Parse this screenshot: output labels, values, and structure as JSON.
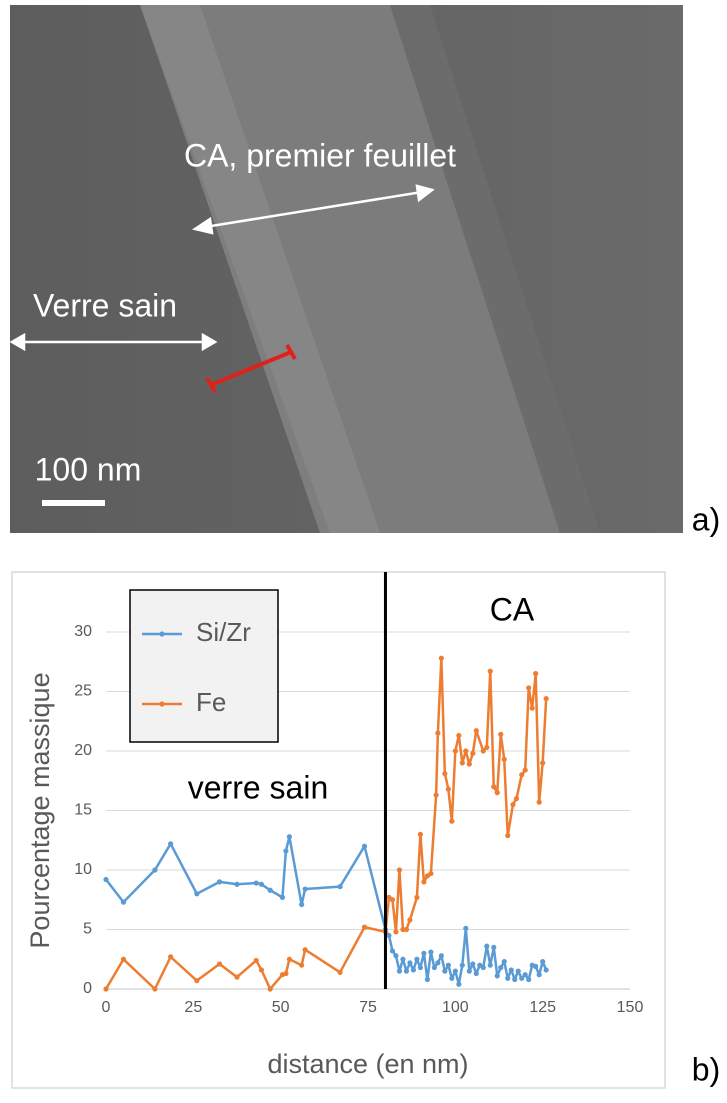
{
  "image": {
    "labels": [
      "CA, premier feuillet",
      "Verre sain",
      "100 nm"
    ]
  },
  "panel_labels": [
    "a)",
    "b)"
  ],
  "chart_data": {
    "type": "line",
    "xlabel": "distance (en nm)",
    "ylabel": "Pourcentage massique",
    "annotations": [
      "verre sain",
      "CA"
    ],
    "vertical_line": 80,
    "xlim": [
      0,
      150
    ],
    "xticks": [
      0,
      25,
      50,
      75,
      100,
      125,
      150
    ],
    "ylim": [
      0,
      30
    ],
    "yticks": [
      0,
      5,
      10,
      15,
      20,
      25,
      30
    ],
    "grid": true,
    "legend": "upper left",
    "series": [
      {
        "name": "Si/Zr",
        "color": "#5b9bd5",
        "x": [
          0,
          5,
          14,
          18.5,
          26,
          32.5,
          37.5,
          43,
          44.5,
          47,
          50.5,
          51.5,
          52.5,
          56,
          57,
          67,
          74,
          80,
          81,
          82,
          83,
          84,
          85,
          86,
          87,
          88,
          89,
          90,
          91,
          92,
          93,
          94,
          95,
          96,
          97,
          98,
          99,
          100,
          101,
          102,
          103,
          104,
          105,
          106,
          107,
          108,
          109,
          110,
          111,
          112,
          113,
          114,
          115,
          116,
          117,
          118,
          119,
          120,
          121,
          122,
          123,
          124,
          125,
          126
        ],
        "values": [
          9.2,
          7.3,
          10,
          12.2,
          8,
          9,
          8.8,
          8.9,
          8.8,
          8.3,
          7.7,
          11.6,
          12.8,
          7.1,
          8.4,
          8.6,
          12,
          5,
          4.5,
          3.2,
          2.8,
          1.5,
          2.5,
          1.5,
          2.2,
          1.6,
          2.5,
          1.8,
          3,
          0.8,
          3.1,
          1.8,
          2.2,
          2.8,
          1.5,
          2,
          0.9,
          1.5,
          0.4,
          2,
          5.1,
          1.5,
          2.1,
          1.3,
          2,
          1.8,
          3.6,
          2,
          3.5,
          1.1,
          1.8,
          2.3,
          0.9,
          1.6,
          0.8,
          1.5,
          0.9,
          1.2,
          0.8,
          2,
          1.9,
          1.2,
          2.3,
          1.6
        ]
      },
      {
        "name": "Fe",
        "color": "#ed7d31",
        "x": [
          0,
          5,
          14,
          18.5,
          26,
          32.5,
          37.5,
          43,
          44.5,
          47,
          50.5,
          51.5,
          52.5,
          56,
          57,
          67,
          74,
          80,
          81,
          82,
          83,
          84,
          85,
          86,
          87,
          89,
          90,
          91,
          92,
          93,
          94.5,
          95,
          96,
          97,
          98,
          99,
          100,
          101,
          102,
          103,
          104,
          105,
          106,
          108,
          109,
          110,
          111,
          112,
          113,
          114,
          115,
          116.5,
          117.5,
          119,
          120,
          121,
          122,
          123,
          124,
          125,
          126
        ],
        "values": [
          0,
          2.5,
          0,
          2.7,
          0.7,
          2.1,
          1,
          2.4,
          1.6,
          0,
          1.2,
          1.3,
          2.5,
          2,
          3.3,
          1.4,
          5.2,
          4.8,
          7.7,
          7.5,
          4.8,
          10,
          5,
          5,
          5.8,
          7.7,
          13,
          9,
          9.5,
          9.7,
          16.3,
          21.5,
          27.8,
          18.1,
          16.8,
          14.1,
          20,
          21.3,
          19,
          20,
          18.9,
          19.8,
          21.7,
          20,
          20.3,
          26.7,
          17,
          16.5,
          21.4,
          19.3,
          12.9,
          15.5,
          16,
          18,
          18.4,
          25.3,
          23.6,
          26.5,
          15.7,
          19,
          24.4
        ]
      }
    ]
  }
}
